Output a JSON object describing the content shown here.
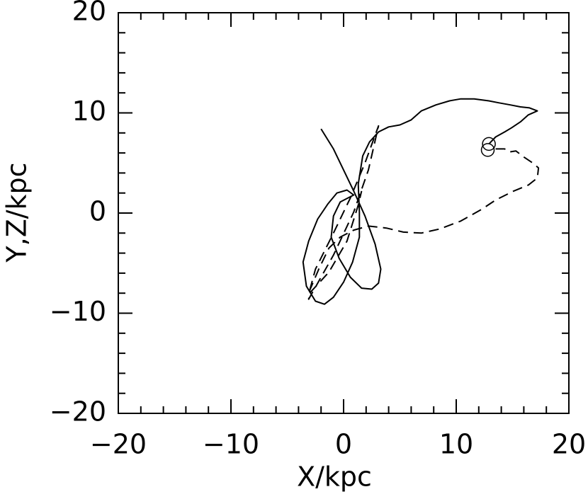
{
  "chart_data": {
    "type": "line",
    "xlabel": "X/kpc",
    "ylabel": "Y,Z/kpc",
    "xlim": [
      -20,
      20
    ],
    "ylim": [
      -20,
      20
    ],
    "xticks": [
      {
        "value": -20,
        "label": "−20"
      },
      {
        "value": -10,
        "label": "−10"
      },
      0,
      10,
      20
    ],
    "yticks": [
      {
        "value": -20,
        "label": "−20"
      },
      {
        "value": -10,
        "label": "−10"
      },
      0,
      10,
      20
    ],
    "xminorticks": [
      -18,
      -16,
      -14,
      -12,
      -8,
      -6,
      -4,
      -2,
      2,
      4,
      6,
      8,
      12,
      14,
      16,
      18
    ],
    "yminorticks": [
      -18,
      -16,
      -14,
      -12,
      -8,
      -6,
      -4,
      -2,
      2,
      4,
      6,
      8,
      12,
      14,
      16,
      18
    ],
    "series": [
      {
        "color": "#000000",
        "dashed": false,
        "x": [
          12.9,
          13.5,
          14.3,
          14.9,
          15.7,
          16.4,
          17.2,
          16.5,
          15.7,
          14.8,
          13.8,
          12.9,
          11.6,
          10.4,
          9.4,
          8.2,
          6.9,
          6.0,
          5.0,
          4.0,
          3.1,
          2.3,
          1.7,
          1.3,
          1.4,
          1.4,
          0.8,
          0,
          -0.9,
          -1.7,
          -2.5,
          -3.3,
          -3.6,
          -3.1,
          -2.3,
          -1.4,
          -0.6,
          0.3,
          0.9,
          -0.3,
          -0.9,
          -1.1,
          -0.4,
          0.6,
          1.6,
          2.5,
          3.1,
          3.3,
          2.8,
          1.9,
          0.9,
          0,
          -0.9,
          -2.0
        ],
        "values": [
          6.9,
          7.6,
          8.1,
          8.5,
          9.1,
          9.8,
          10.2,
          10.5,
          10.6,
          10.8,
          11.0,
          11.2,
          11.4,
          11.4,
          11.2,
          10.8,
          10.2,
          9.3,
          8.8,
          8.6,
          8.1,
          7.1,
          5.7,
          2.9,
          0.1,
          -2.4,
          -4.9,
          -6.9,
          -8.4,
          -9.1,
          -8.8,
          -7.3,
          -4.9,
          -2.8,
          -0.6,
          0.9,
          2.0,
          2.3,
          1.8,
          1.1,
          -0.3,
          -2.4,
          -4.5,
          -6.4,
          -7.5,
          -7.6,
          -7.0,
          -5.6,
          -3.1,
          -0.3,
          2.2,
          4.3,
          6.4,
          8.4
        ]
      },
      {
        "color": "#000000",
        "dashed": true,
        "x": [
          13.5,
          14.3,
          14.7,
          15.3,
          16.0,
          16.8,
          17.3,
          17.2,
          16.4,
          15.1,
          13.5,
          12.3,
          10.4,
          8.5,
          6.9,
          5.3,
          3.8,
          2.2,
          0.9,
          -0.3,
          -1.3,
          -2.2,
          -3.0,
          -3.1,
          -0.9,
          0.9,
          2.2,
          3.1,
          1.9,
          0.6,
          -0.9,
          -2.5,
          -3.1,
          -1.3,
          0.3,
          1.3,
          1.6
        ],
        "values": [
          6.4,
          6.4,
          6.1,
          6.2,
          5.6,
          5.0,
          4.5,
          3.5,
          2.8,
          2.2,
          1.3,
          0.4,
          -0.8,
          -1.6,
          -2.0,
          -1.9,
          -1.5,
          -1.3,
          -1.7,
          -2.4,
          -3.5,
          -5.6,
          -7.7,
          -8.6,
          -4.2,
          0.1,
          4.3,
          8.7,
          5.0,
          1.5,
          -2.0,
          -5.6,
          -8.1,
          -5.9,
          -2.8,
          0.8,
          2.2
        ]
      }
    ],
    "points": {
      "x": [
        12.9,
        12.8
      ],
      "y": [
        6.9,
        6.3
      ]
    }
  }
}
